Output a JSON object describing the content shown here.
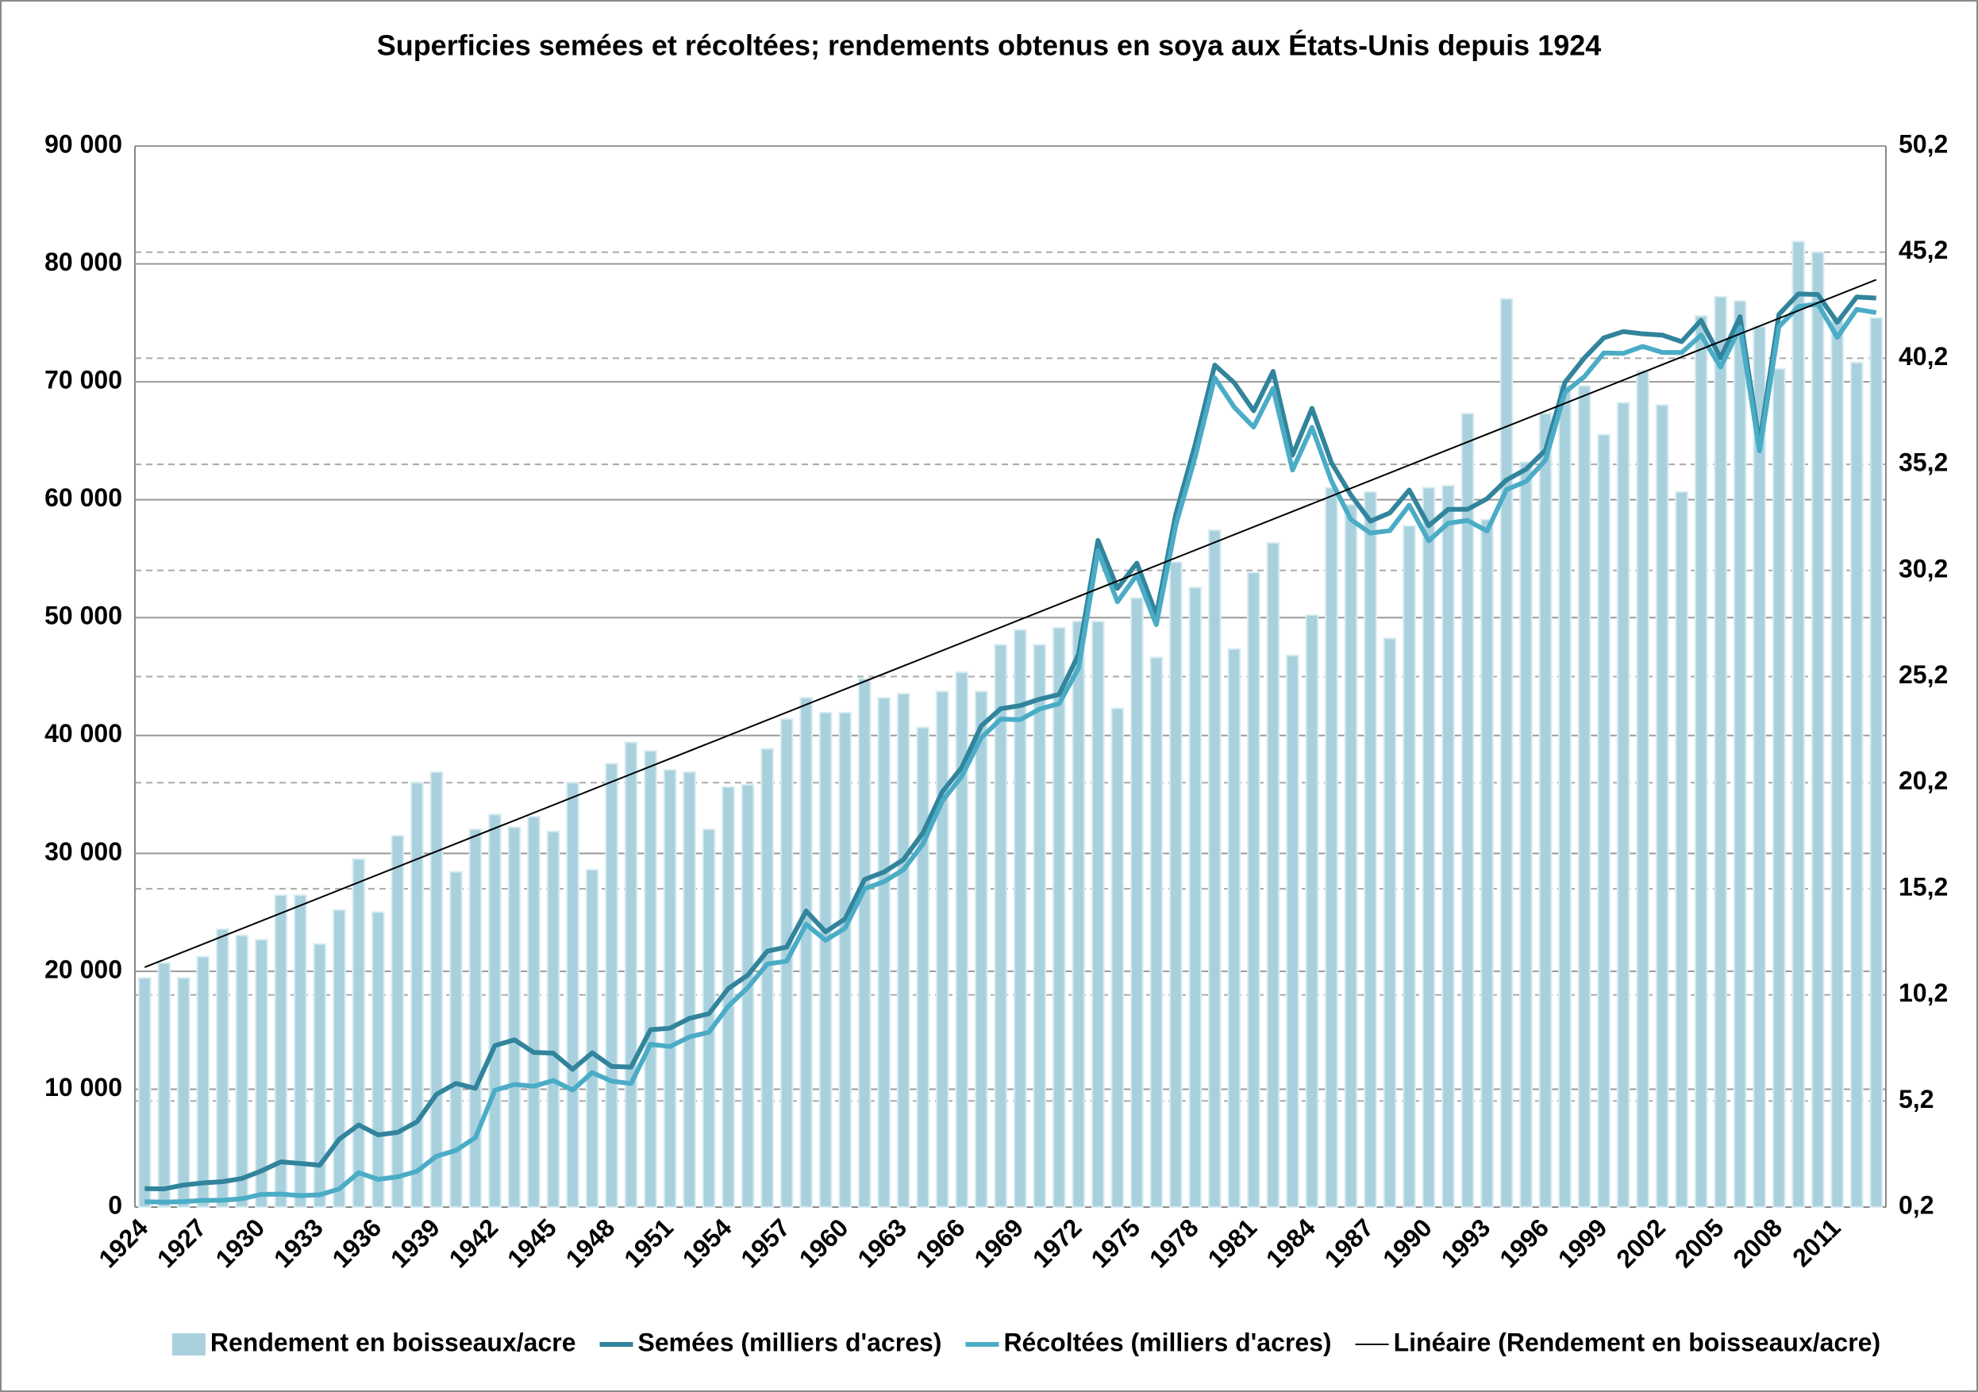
{
  "chart_data": {
    "type": "combo",
    "title": "Superficies semées et récoltées; rendements obtenus en soya aux États-Unis depuis 1924",
    "categories": [
      "1924",
      null,
      null,
      "1927",
      null,
      null,
      "1930",
      null,
      null,
      "1933",
      null,
      null,
      "1936",
      null,
      null,
      "1939",
      null,
      null,
      "1942",
      null,
      null,
      "1945",
      null,
      null,
      "1948",
      null,
      null,
      "1951",
      null,
      null,
      "1954",
      null,
      null,
      "1957",
      null,
      null,
      "1960",
      null,
      null,
      "1963",
      null,
      null,
      "1966",
      null,
      null,
      "1969",
      null,
      null,
      "1972",
      null,
      null,
      "1975",
      null,
      null,
      "1978",
      null,
      null,
      "1981",
      null,
      null,
      "1984",
      null,
      null,
      "1987",
      null,
      null,
      "1990",
      null,
      null,
      "1993",
      null,
      null,
      "1996",
      null,
      null,
      "1999",
      null,
      null,
      "2002",
      null,
      null,
      "2005",
      null,
      null,
      "2008",
      null,
      null,
      "2011",
      null,
      null
    ],
    "series": [
      {
        "name": "Rendement en boisseaux/acre",
        "type": "bar",
        "axis": "y2",
        "color": "#a9d1dd",
        "values": [
          11.0,
          11.7,
          11.0,
          12.0,
          13.3,
          13.0,
          12.8,
          14.9,
          14.9,
          12.6,
          14.2,
          16.6,
          14.1,
          17.7,
          20.2,
          20.7,
          16.0,
          18.0,
          18.7,
          18.1,
          18.6,
          17.9,
          20.2,
          16.1,
          21.1,
          22.1,
          21.7,
          20.8,
          20.7,
          18.0,
          20.0,
          20.1,
          21.8,
          23.2,
          24.2,
          23.5,
          23.5,
          25.1,
          24.2,
          24.4,
          22.8,
          24.5,
          25.4,
          24.5,
          26.7,
          27.4,
          26.7,
          27.5,
          27.8,
          27.8,
          23.7,
          28.9,
          26.1,
          30.6,
          29.4,
          32.1,
          26.5,
          30.1,
          31.5,
          26.2,
          28.1,
          34.1,
          33.3,
          33.9,
          27.0,
          32.3,
          34.1,
          34.2,
          37.6,
          32.6,
          43.0,
          35.3,
          37.6,
          38.9,
          38.9,
          36.6,
          38.1,
          39.6,
          38.0,
          33.9,
          42.2,
          43.1,
          42.9,
          41.7,
          39.7,
          45.7,
          45.2,
          42.0,
          40.0,
          42.1
        ]
      },
      {
        "name": "Semées (milliers d'acres)",
        "type": "line",
        "color": "#31849b",
        "values": [
          1567,
          1539,
          1871,
          2056,
          2154,
          2429,
          3072,
          3835,
          3704,
          3551,
          5764,
          6966,
          6127,
          6332,
          7237,
          9565,
          10487,
          10068,
          13696,
          14191,
          13118,
          13056,
          11683,
          13083,
          11935,
          11872,
          15048,
          15176,
          16005,
          16402,
          18541,
          19674,
          21700,
          22060,
          25112,
          23349,
          24440,
          27787,
          28418,
          29476,
          31724,
          35227,
          37294,
          40819,
          42265,
          42534,
          43082,
          43476,
          46866,
          56549,
          52479,
          54617,
          50226,
          58760,
          64708,
          71411,
          69930,
          67543,
          70884,
          63779,
          67755,
          63142,
          60405,
          58180,
          58883,
          60820,
          57795,
          59180,
          59180,
          60085,
          61680,
          62575,
          64195,
          69950,
          72025,
          73730,
          74265,
          74075,
          73963,
          73404,
          75208,
          72032,
          75522,
          64741,
          75718,
          77451,
          77404,
          75046,
          77198,
          77100
        ]
      },
      {
        "name": "Récoltées (milliers d'acres)",
        "type": "line",
        "color": "#4bacc6",
        "values": [
          448,
          415,
          466,
          568,
          579,
          708,
          1074,
          1104,
          977,
          1044,
          1539,
          2915,
          2359,
          2564,
          3036,
          4315,
          4807,
          5889,
          9906,
          10397,
          10252,
          10740,
          9932,
          11411,
          10682,
          10482,
          13807,
          13615,
          14435,
          14829,
          17047,
          18620,
          20620,
          20857,
          23993,
          22631,
          23655,
          27003,
          27608,
          28615,
          30793,
          34449,
          36546,
          39805,
          41391,
          41337,
          42249,
          42701,
          45698,
          55667,
          51341,
          53617,
          49401,
          57830,
          63663,
          70343,
          67856,
          66163,
          69442,
          62525,
          66138,
          61599,
          58312,
          57172,
          57373,
          59538,
          56512,
          58011,
          58233,
          57347,
          60859,
          61544,
          63349,
          69110,
          70441,
          72446,
          72408,
          73000,
          72497,
          72476,
          73958,
          71251,
          74602,
          64146,
          74681,
          76372,
          76610,
          73776,
          76144,
          75869
        ]
      }
    ],
    "trendline": {
      "name": "Linéaire (Rendement en boisseaux/acre)",
      "color": "#000000",
      "axis": "y2",
      "start": 11.5,
      "end": 43.9
    },
    "ylim": [
      0,
      90000
    ],
    "yticks": [
      0,
      {
        "value": 10000,
        "label": "10 000"
      },
      {
        "value": 20000,
        "label": "20 000"
      },
      {
        "value": 30000,
        "label": "30 000"
      },
      {
        "value": 40000,
        "label": "40 000"
      },
      {
        "value": 50000,
        "label": "50 000"
      },
      {
        "value": 60000,
        "label": "60 000"
      },
      {
        "value": 70000,
        "label": "70 000"
      },
      {
        "value": 80000,
        "label": "80 000"
      },
      {
        "value": 90000,
        "label": "90 000"
      }
    ],
    "y2lim": [
      0.2,
      50.2
    ],
    "y2ticks": [
      {
        "value": 0.2,
        "label": "0,2"
      },
      {
        "value": 5.2,
        "label": "5,2"
      },
      {
        "value": 10.2,
        "label": "10,2"
      },
      {
        "value": 15.2,
        "label": "15,2"
      },
      {
        "value": 20.2,
        "label": "20,2"
      },
      {
        "value": 25.2,
        "label": "25,2"
      },
      {
        "value": 30.2,
        "label": "30,2"
      },
      {
        "value": 35.2,
        "label": "35,2"
      },
      {
        "value": 40.2,
        "label": "40,2"
      },
      {
        "value": 45.2,
        "label": "45,2"
      },
      {
        "value": 50.2,
        "label": "50,2"
      }
    ],
    "grid": true,
    "y2grid": true,
    "legend": "bottom"
  }
}
